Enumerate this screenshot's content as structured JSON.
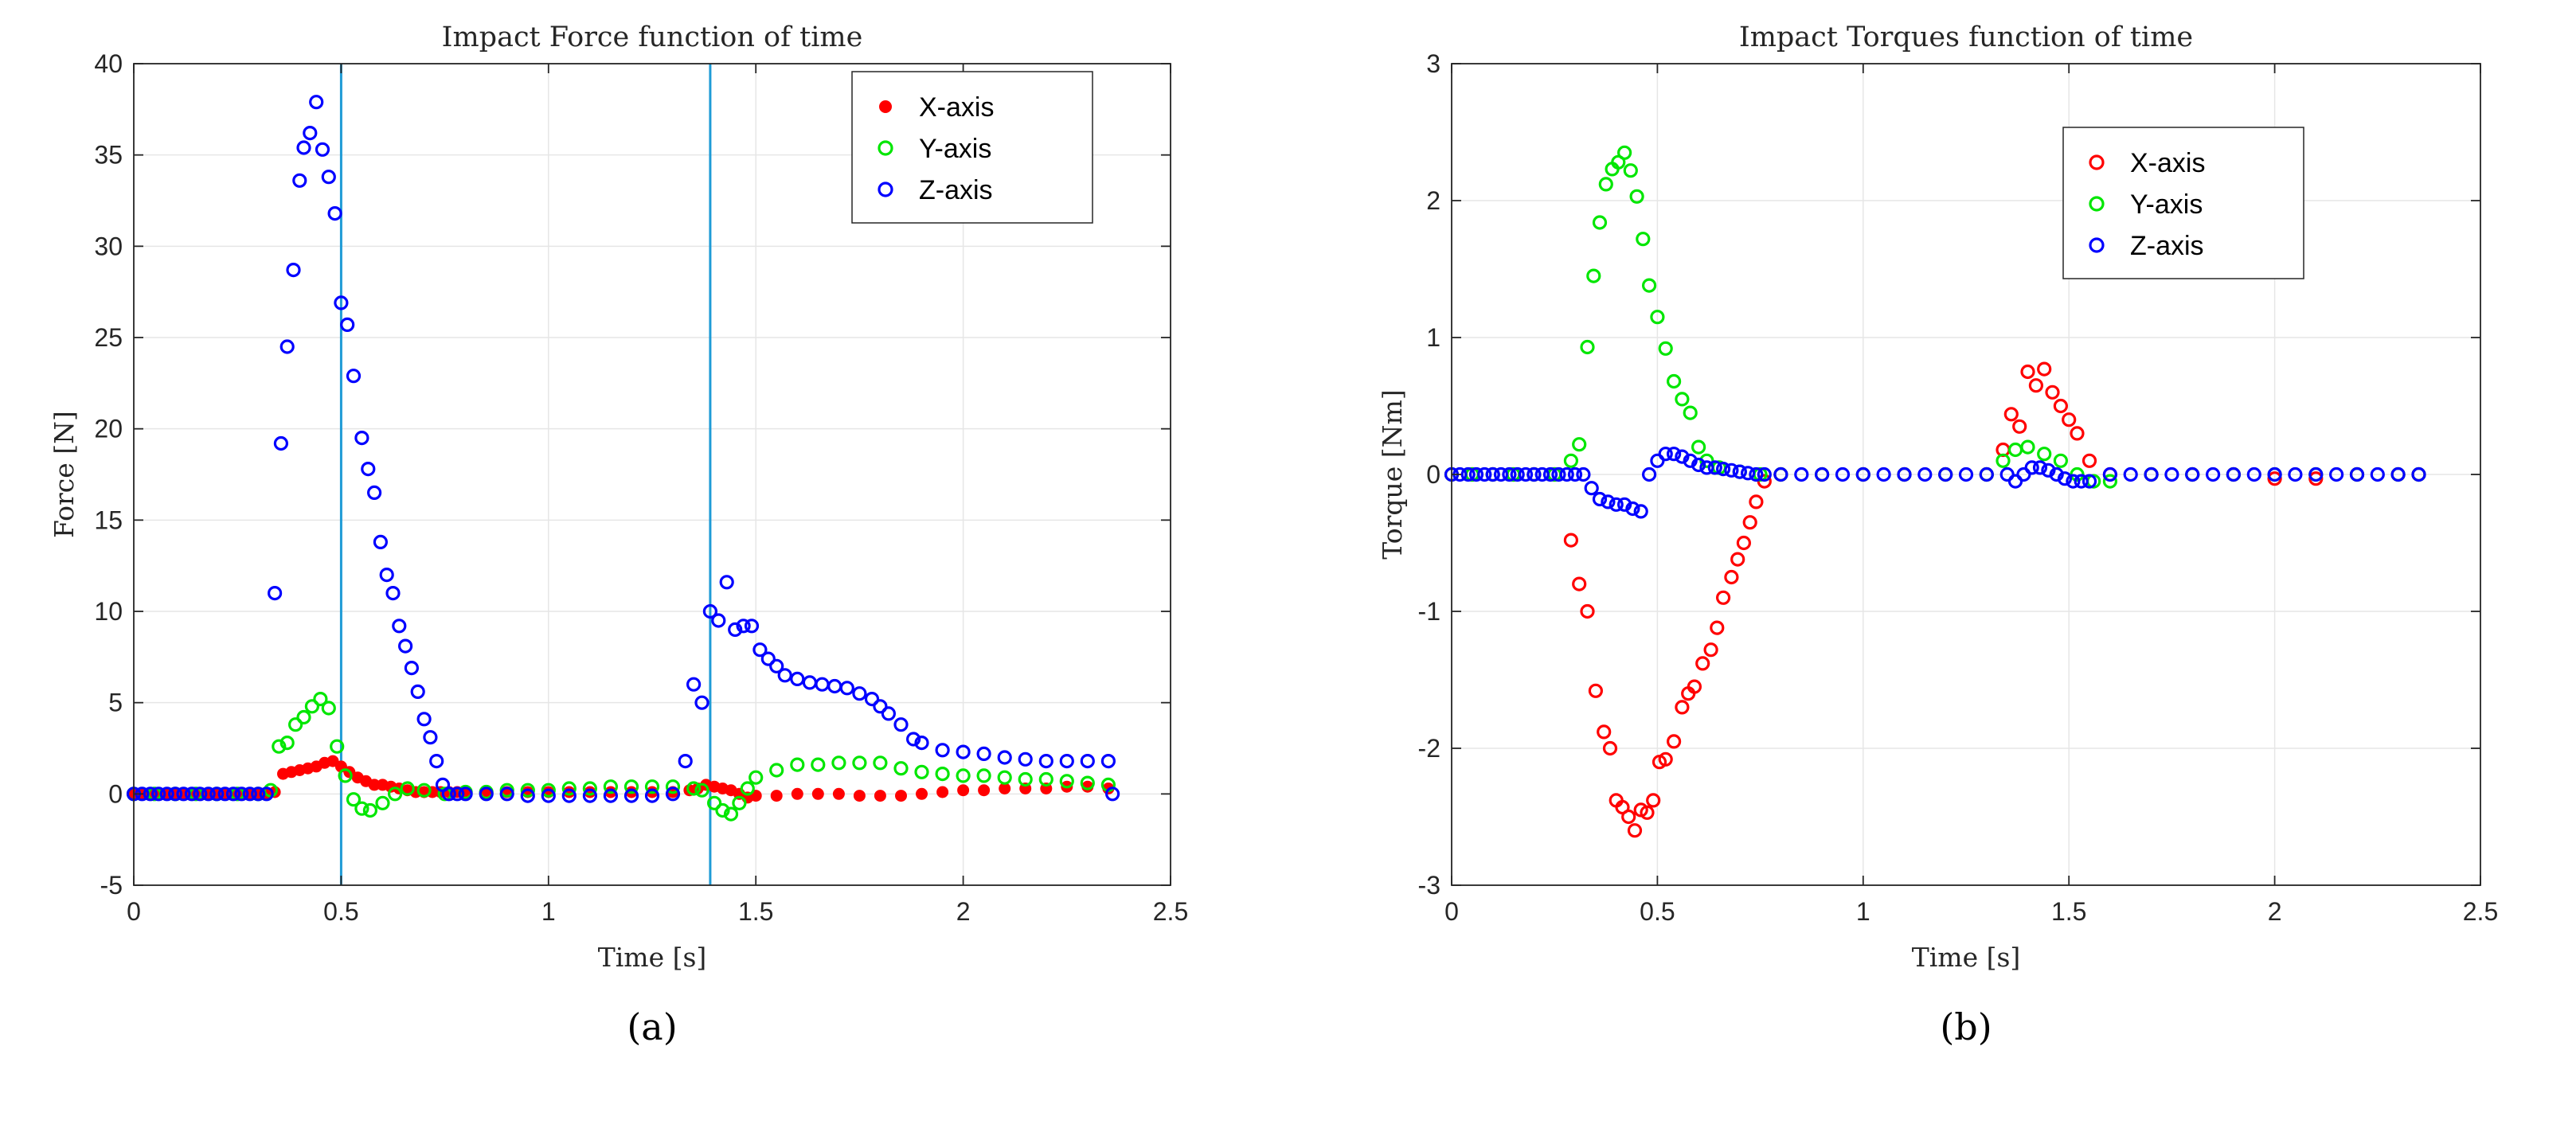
{
  "colors": {
    "x_axis": "#ff0000",
    "y_axis": "#00e600",
    "z_axis": "#0000ff",
    "vline": "#1f9bd6"
  },
  "chart_data": [
    {
      "type": "scatter",
      "panel": "a",
      "caption": "(a)",
      "title": "Impact Force function of time",
      "xlabel": "Time [s]",
      "ylabel": "Force [N]",
      "xlim": [
        0,
        2.5
      ],
      "ylim": [
        -5,
        40
      ],
      "xticks": [
        "0",
        "0.5",
        "1",
        "1.5",
        "2",
        "2.5"
      ],
      "yticks": [
        "-5",
        "0",
        "5",
        "10",
        "15",
        "20",
        "25",
        "30",
        "35",
        "40"
      ],
      "grid": true,
      "legend_position": "top-right",
      "vlines": [
        0.5,
        1.39
      ],
      "series": [
        {
          "name": "X-axis",
          "marker": "filled",
          "x": [
            0,
            0.02,
            0.04,
            0.06,
            0.08,
            0.1,
            0.12,
            0.14,
            0.16,
            0.18,
            0.2,
            0.22,
            0.24,
            0.26,
            0.28,
            0.3,
            0.32,
            0.34,
            0.36,
            0.38,
            0.4,
            0.42,
            0.44,
            0.46,
            0.48,
            0.5,
            0.52,
            0.54,
            0.56,
            0.58,
            0.6,
            0.62,
            0.64,
            0.66,
            0.68,
            0.7,
            0.72,
            0.74,
            0.76,
            0.78,
            0.8,
            0.85,
            0.9,
            0.95,
            1.0,
            1.05,
            1.1,
            1.15,
            1.2,
            1.25,
            1.3,
            1.34,
            1.36,
            1.38,
            1.4,
            1.42,
            1.44,
            1.46,
            1.48,
            1.5,
            1.55,
            1.6,
            1.65,
            1.7,
            1.75,
            1.8,
            1.85,
            1.9,
            1.95,
            2.0,
            2.05,
            2.1,
            2.15,
            2.2,
            2.25,
            2.3,
            2.35
          ],
          "y": [
            0,
            0,
            0,
            0,
            0,
            0,
            0,
            0,
            0,
            0,
            0,
            0,
            0,
            0,
            0,
            0,
            0,
            0.1,
            1.1,
            1.2,
            1.3,
            1.4,
            1.5,
            1.7,
            1.8,
            1.5,
            1.2,
            0.9,
            0.7,
            0.5,
            0.5,
            0.4,
            0.3,
            0.2,
            0.1,
            0.1,
            0.1,
            0.1,
            0.1,
            0.1,
            0.1,
            0.1,
            0.1,
            0.1,
            0.1,
            0.1,
            0.1,
            0.1,
            0.1,
            0.1,
            0.1,
            0.2,
            0.3,
            0.5,
            0.4,
            0.3,
            0.2,
            0.0,
            -0.2,
            -0.1,
            -0.1,
            0.0,
            0.0,
            0.0,
            -0.1,
            -0.1,
            -0.1,
            0.0,
            0.1,
            0.2,
            0.2,
            0.3,
            0.3,
            0.3,
            0.4,
            0.4,
            0.3
          ]
        },
        {
          "name": "Y-axis",
          "marker": "open",
          "x": [
            0,
            0.05,
            0.1,
            0.15,
            0.2,
            0.25,
            0.3,
            0.33,
            0.35,
            0.37,
            0.39,
            0.41,
            0.43,
            0.45,
            0.47,
            0.49,
            0.51,
            0.53,
            0.55,
            0.57,
            0.6,
            0.63,
            0.66,
            0.7,
            0.75,
            0.8,
            0.85,
            0.9,
            0.95,
            1.0,
            1.05,
            1.1,
            1.15,
            1.2,
            1.25,
            1.3,
            1.35,
            1.37,
            1.4,
            1.42,
            1.44,
            1.46,
            1.48,
            1.5,
            1.55,
            1.6,
            1.65,
            1.7,
            1.75,
            1.8,
            1.85,
            1.9,
            1.95,
            2.0,
            2.05,
            2.1,
            2.15,
            2.2,
            2.25,
            2.3,
            2.35
          ],
          "y": [
            0,
            0,
            0,
            0,
            0,
            0,
            0,
            0.2,
            2.6,
            2.8,
            3.8,
            4.2,
            4.8,
            5.2,
            4.7,
            2.6,
            1.0,
            -0.3,
            -0.8,
            -0.9,
            -0.5,
            0.0,
            0.3,
            0.2,
            0.0,
            0.1,
            0.1,
            0.2,
            0.2,
            0.2,
            0.3,
            0.3,
            0.4,
            0.4,
            0.4,
            0.4,
            0.3,
            0.2,
            -0.5,
            -0.9,
            -1.1,
            -0.5,
            0.3,
            0.9,
            1.3,
            1.6,
            1.6,
            1.7,
            1.7,
            1.7,
            1.4,
            1.2,
            1.1,
            1.0,
            1.0,
            0.9,
            0.8,
            0.8,
            0.7,
            0.6,
            0.5
          ]
        },
        {
          "name": "Z-axis",
          "marker": "open",
          "x": [
            0,
            0.02,
            0.04,
            0.06,
            0.08,
            0.1,
            0.12,
            0.14,
            0.16,
            0.18,
            0.2,
            0.22,
            0.24,
            0.26,
            0.28,
            0.3,
            0.32,
            0.34,
            0.355,
            0.37,
            0.385,
            0.4,
            0.41,
            0.425,
            0.44,
            0.455,
            0.47,
            0.485,
            0.5,
            0.515,
            0.53,
            0.55,
            0.565,
            0.58,
            0.595,
            0.61,
            0.625,
            0.64,
            0.655,
            0.67,
            0.685,
            0.7,
            0.715,
            0.73,
            0.745,
            0.76,
            0.78,
            0.8,
            0.85,
            0.9,
            0.95,
            1.0,
            1.05,
            1.1,
            1.15,
            1.2,
            1.25,
            1.3,
            1.33,
            1.35,
            1.37,
            1.39,
            1.41,
            1.43,
            1.45,
            1.47,
            1.49,
            1.51,
            1.53,
            1.55,
            1.57,
            1.6,
            1.63,
            1.66,
            1.69,
            1.72,
            1.75,
            1.78,
            1.8,
            1.82,
            1.85,
            1.88,
            1.9,
            1.95,
            2.0,
            2.05,
            2.1,
            2.15,
            2.2,
            2.25,
            2.3,
            2.35,
            2.36
          ],
          "y": [
            0,
            0,
            0,
            0,
            0,
            0,
            0,
            0,
            0,
            0,
            0,
            0,
            0,
            0,
            0,
            0,
            0,
            11.0,
            19.2,
            24.5,
            28.7,
            33.6,
            35.4,
            36.2,
            37.9,
            35.3,
            33.8,
            31.8,
            26.9,
            25.7,
            22.9,
            19.5,
            17.8,
            16.5,
            13.8,
            12.0,
            11.0,
            9.2,
            8.1,
            6.9,
            5.6,
            4.1,
            3.1,
            1.8,
            0.5,
            0.0,
            0.0,
            0.0,
            0.0,
            0.0,
            -0.1,
            -0.1,
            -0.1,
            -0.1,
            -0.1,
            -0.1,
            -0.1,
            0.0,
            1.8,
            6.0,
            5.0,
            10.0,
            9.5,
            11.6,
            9.0,
            9.2,
            9.2,
            7.9,
            7.4,
            7.0,
            6.5,
            6.3,
            6.1,
            6.0,
            5.9,
            5.8,
            5.5,
            5.2,
            4.8,
            4.4,
            3.8,
            3.0,
            2.8,
            2.4,
            2.3,
            2.2,
            2.0,
            1.9,
            1.8,
            1.8,
            1.8,
            1.8,
            0.0
          ]
        }
      ]
    },
    {
      "type": "scatter",
      "panel": "b",
      "caption": "(b)",
      "title": "Impact Torques function of time",
      "xlabel": "Time [s]",
      "ylabel": "Torque [Nm]",
      "xlim": [
        0,
        2.5
      ],
      "ylim": [
        -3,
        3
      ],
      "xticks": [
        "0",
        "0.5",
        "1",
        "1.5",
        "2",
        "2.5"
      ],
      "yticks": [
        "-3",
        "-2",
        "-1",
        "0",
        "1",
        "2",
        "3"
      ],
      "grid": true,
      "legend_position": "top-right",
      "series": [
        {
          "name": "X-axis",
          "marker": "open",
          "x": [
            0,
            0.05,
            0.1,
            0.15,
            0.2,
            0.25,
            0.29,
            0.31,
            0.33,
            0.35,
            0.37,
            0.385,
            0.4,
            0.415,
            0.43,
            0.445,
            0.46,
            0.475,
            0.49,
            0.505,
            0.52,
            0.54,
            0.56,
            0.575,
            0.59,
            0.61,
            0.63,
            0.645,
            0.66,
            0.68,
            0.695,
            0.71,
            0.725,
            0.74,
            0.76,
            0.8,
            0.9,
            1.0,
            1.1,
            1.2,
            1.3,
            1.34,
            1.36,
            1.38,
            1.4,
            1.42,
            1.44,
            1.46,
            1.48,
            1.5,
            1.52,
            1.55,
            1.6,
            1.7,
            1.8,
            1.9,
            2.0,
            2.1,
            2.2,
            2.3,
            2.35
          ],
          "y": [
            0,
            0,
            0,
            0,
            0,
            0,
            -0.48,
            -0.8,
            -1.0,
            -1.58,
            -1.88,
            -2.0,
            -2.38,
            -2.43,
            -2.5,
            -2.6,
            -2.45,
            -2.47,
            -2.38,
            -2.1,
            -2.08,
            -1.95,
            -1.7,
            -1.6,
            -1.55,
            -1.38,
            -1.28,
            -1.12,
            -0.9,
            -0.75,
            -0.62,
            -0.5,
            -0.35,
            -0.2,
            -0.05,
            0.0,
            0.0,
            0.0,
            0.0,
            0.0,
            0.0,
            0.18,
            0.44,
            0.35,
            0.75,
            0.65,
            0.77,
            0.6,
            0.5,
            0.4,
            0.3,
            0.1,
            0.0,
            0.0,
            0.0,
            0.0,
            -0.03,
            -0.03,
            0.0,
            0.0,
            0.0
          ]
        },
        {
          "name": "Y-axis",
          "marker": "open",
          "x": [
            0,
            0.05,
            0.1,
            0.15,
            0.2,
            0.25,
            0.29,
            0.31,
            0.33,
            0.345,
            0.36,
            0.375,
            0.39,
            0.405,
            0.42,
            0.435,
            0.45,
            0.465,
            0.48,
            0.5,
            0.52,
            0.54,
            0.56,
            0.58,
            0.6,
            0.62,
            0.65,
            0.7,
            0.75,
            0.8,
            0.9,
            1.0,
            1.1,
            1.2,
            1.3,
            1.34,
            1.37,
            1.4,
            1.44,
            1.48,
            1.52,
            1.56,
            1.6,
            1.7,
            1.8,
            1.9,
            2.0,
            2.1,
            2.2,
            2.3,
            2.35
          ],
          "y": [
            0,
            0,
            0,
            0,
            0,
            0,
            0.1,
            0.22,
            0.93,
            1.45,
            1.84,
            2.12,
            2.23,
            2.28,
            2.35,
            2.22,
            2.03,
            1.72,
            1.38,
            1.15,
            0.92,
            0.68,
            0.55,
            0.45,
            0.2,
            0.1,
            0.05,
            0.02,
            0.0,
            0.0,
            0.0,
            0.0,
            0.0,
            0.0,
            0.0,
            0.1,
            0.18,
            0.2,
            0.15,
            0.1,
            0.0,
            -0.05,
            -0.05,
            0.0,
            0.0,
            0.0,
            0.0,
            0.0,
            0.0,
            0.0,
            0.0
          ]
        },
        {
          "name": "Z-axis",
          "marker": "open",
          "x": [
            0,
            0.02,
            0.04,
            0.06,
            0.08,
            0.1,
            0.12,
            0.14,
            0.16,
            0.18,
            0.2,
            0.22,
            0.24,
            0.26,
            0.28,
            0.3,
            0.32,
            0.34,
            0.36,
            0.38,
            0.4,
            0.42,
            0.44,
            0.46,
            0.48,
            0.5,
            0.52,
            0.54,
            0.56,
            0.58,
            0.6,
            0.62,
            0.64,
            0.66,
            0.68,
            0.7,
            0.72,
            0.74,
            0.76,
            0.8,
            0.85,
            0.9,
            0.95,
            1.0,
            1.05,
            1.1,
            1.15,
            1.2,
            1.25,
            1.3,
            1.35,
            1.37,
            1.39,
            1.41,
            1.43,
            1.45,
            1.47,
            1.49,
            1.51,
            1.53,
            1.55,
            1.6,
            1.65,
            1.7,
            1.75,
            1.8,
            1.85,
            1.9,
            1.95,
            2.0,
            2.05,
            2.1,
            2.15,
            2.2,
            2.25,
            2.3,
            2.35
          ],
          "y": [
            0,
            0,
            0,
            0,
            0,
            0,
            0,
            0,
            0,
            0,
            0,
            0,
            0,
            0,
            0,
            0,
            0,
            -0.1,
            -0.18,
            -0.2,
            -0.22,
            -0.22,
            -0.25,
            -0.27,
            0.0,
            0.1,
            0.15,
            0.15,
            0.13,
            0.1,
            0.07,
            0.05,
            0.05,
            0.04,
            0.03,
            0.02,
            0.01,
            0.0,
            0.0,
            0.0,
            0.0,
            0.0,
            0.0,
            0.0,
            0.0,
            0.0,
            0.0,
            0.0,
            0.0,
            0.0,
            0.0,
            -0.05,
            0.0,
            0.05,
            0.05,
            0.03,
            0.0,
            -0.03,
            -0.05,
            -0.05,
            -0.05,
            0.0,
            0.0,
            0.0,
            0.0,
            0.0,
            0.0,
            0.0,
            0.0,
            0.0,
            0.0,
            0.0,
            0.0,
            0.0,
            0.0,
            0.0,
            0.0
          ]
        }
      ]
    }
  ]
}
